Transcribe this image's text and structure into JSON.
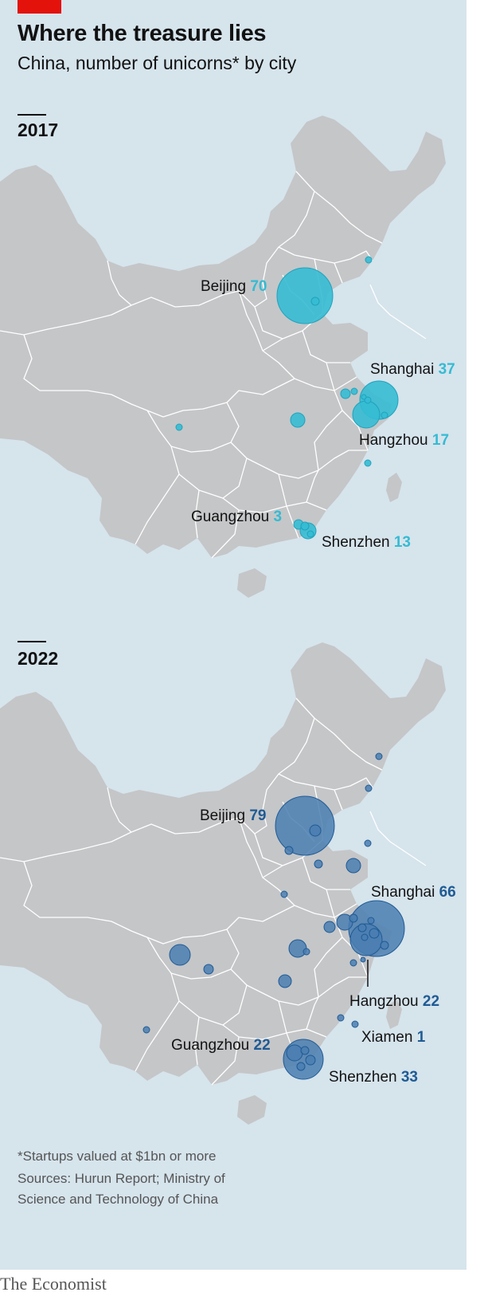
{
  "header": {
    "title": "Where the treasure lies",
    "subtitle": "China, number of unicorns* by city"
  },
  "maps": [
    {
      "year": "2017",
      "color": "#35bbd3",
      "cities": [
        {
          "name": "Beijing",
          "value": "70"
        },
        {
          "name": "Shanghai",
          "value": "37"
        },
        {
          "name": "Hangzhou",
          "value": "17"
        },
        {
          "name": "Guangzhou",
          "value": "3"
        },
        {
          "name": "Shenzhen",
          "value": "13"
        }
      ]
    },
    {
      "year": "2022",
      "color": "#4a7eb1",
      "label_color": "#1f5b94",
      "cities": [
        {
          "name": "Beijing",
          "value": "79"
        },
        {
          "name": "Shanghai",
          "value": "66"
        },
        {
          "name": "Hangzhou",
          "value": "22"
        },
        {
          "name": "Xiamen",
          "value": "1"
        },
        {
          "name": "Guangzhou",
          "value": "22"
        },
        {
          "name": "Shenzhen",
          "value": "33"
        }
      ]
    }
  ],
  "footnotes": {
    "note": "*Startups valued at $1bn or more",
    "sources_line1": "Sources: Hurun Report; Ministry of",
    "sources_line2": "Science and Technology of China"
  },
  "brand": {
    "logo": "The Economist",
    "accent": "#e3120b"
  }
}
